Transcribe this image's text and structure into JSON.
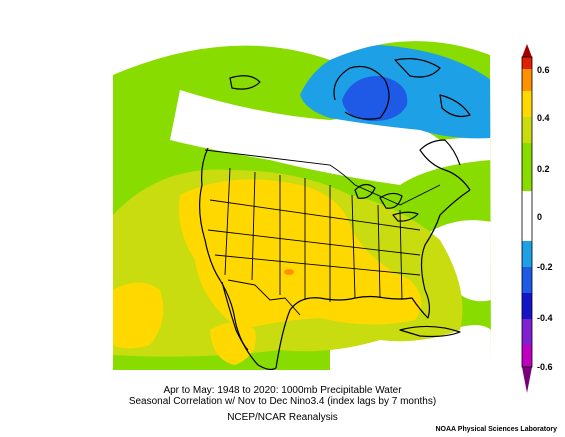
{
  "caption": {
    "line1": "Apr to May: 1948 to 2020: 1000mb Precipitable Water",
    "line2": "Seasonal Correlation w/ Nov to Dec Nino3.4 (index lags by 7 months)",
    "line3": "NCEP/NCAR Reanalysis"
  },
  "credit": "NOAA Physical Sciences Laboratory",
  "colorbar": {
    "ticks": [
      "0.6",
      "0.4",
      "0.2",
      "0",
      "-0.2",
      "-0.4",
      "-0.6"
    ],
    "colors": {
      "dark_red": "#a50000",
      "red": "#e02000",
      "orange": "#ff9000",
      "yellow": "#ffd800",
      "yellow_green": "#c8dc10",
      "green": "#88dc00",
      "white": "#ffffff",
      "light_blue": "#1ea0e6",
      "blue": "#1e5ae6",
      "dark_blue": "#1414c8",
      "violet": "#8020d0",
      "magenta": "#c000c0",
      "purple": "#780078"
    }
  },
  "field_colors": {
    "positive_weak": "#88dc00",
    "positive_mid": "#c8dc10",
    "positive_strong": "#ffd800",
    "positive_max": "#ff9000",
    "near_zero": "#ffffff",
    "negative_weak": "#1ea0e6",
    "negative_mid": "#1e5ae6"
  }
}
